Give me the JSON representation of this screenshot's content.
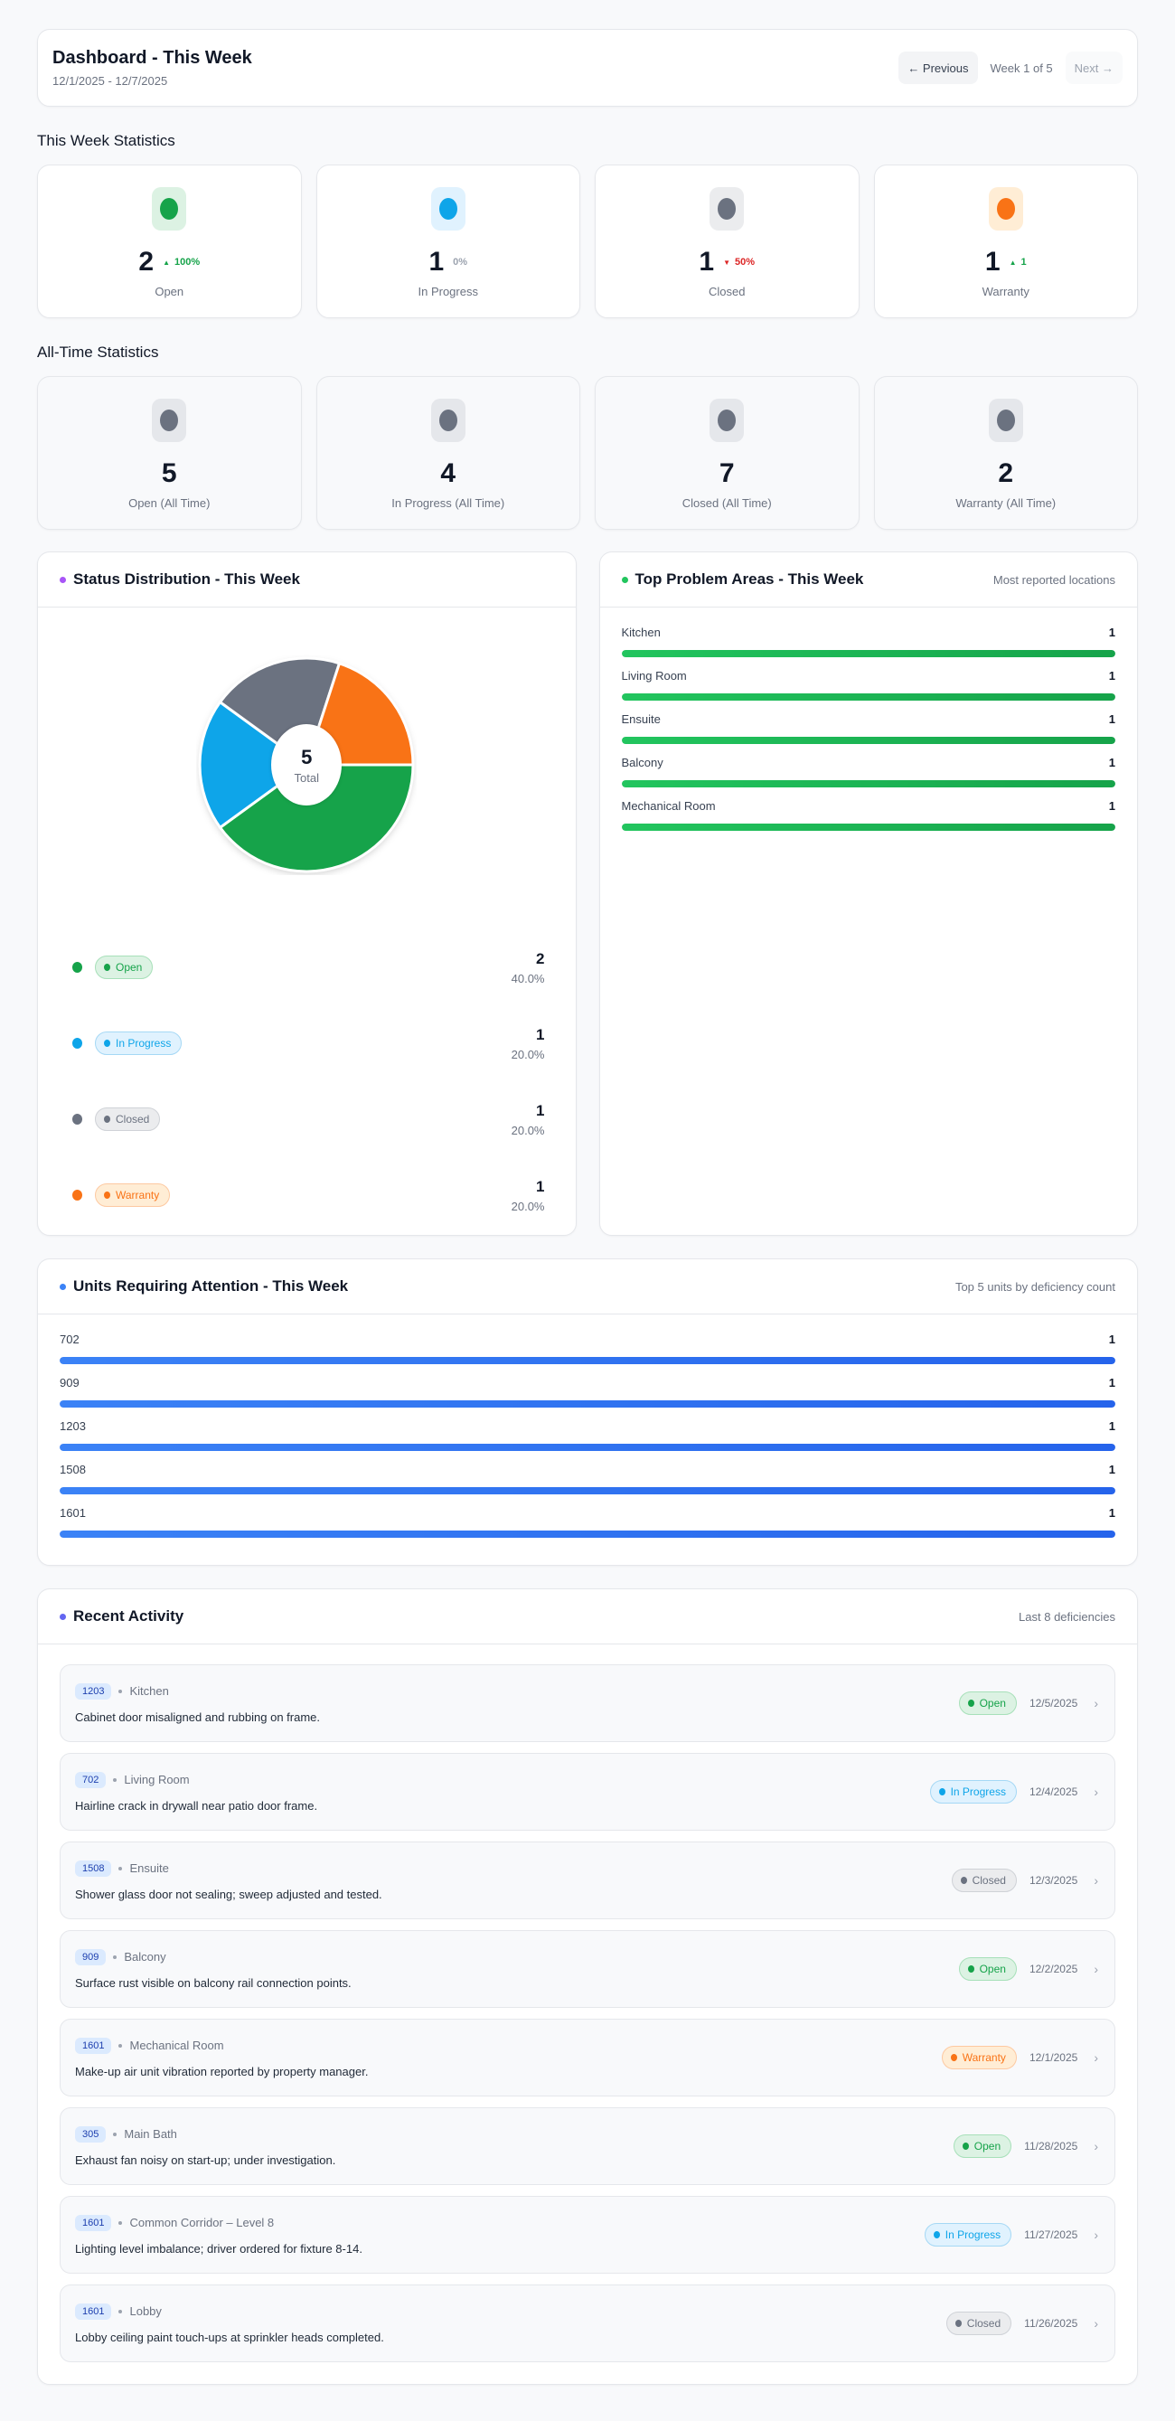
{
  "header": {
    "title": "Dashboard - This Week",
    "date_range": "12/1/2025 - 12/7/2025",
    "prev_label": "← Previous",
    "week_label": "Week 1 of 5",
    "next_label": "Next →"
  },
  "this_week": {
    "title": "This Week Statistics",
    "cards": [
      {
        "value": "2",
        "delta_arrow": "▲",
        "delta": "100%",
        "delta_color": "#16a34a",
        "label": "Open",
        "icon_color": "#16a34a",
        "icon_bg": "#dcf2e3"
      },
      {
        "value": "1",
        "delta_arrow": "",
        "delta": "0%",
        "delta_color": "#9ca3af",
        "label": "In Progress",
        "icon_color": "#0ea5e9",
        "icon_bg": "#e0f2fe"
      },
      {
        "value": "1",
        "delta_arrow": "▼",
        "delta": "50%",
        "delta_color": "#dc2626",
        "label": "Closed",
        "icon_color": "#6b7280",
        "icon_bg": "#ebecee"
      },
      {
        "value": "1",
        "delta_arrow": "▲",
        "delta": "1",
        "delta_color": "#16a34a",
        "label": "Warranty",
        "icon_color": "#f97316",
        "icon_bg": "#ffedd5"
      }
    ]
  },
  "all_time": {
    "title": "All-Time Statistics",
    "cards": [
      {
        "value": "5",
        "label": "Open (All Time)",
        "icon_color": "#6b7280",
        "icon_bg": "#e5e7eb"
      },
      {
        "value": "4",
        "label": "In Progress (All Time)",
        "icon_color": "#6b7280",
        "icon_bg": "#e5e7eb"
      },
      {
        "value": "7",
        "label": "Closed (All Time)",
        "icon_color": "#6b7280",
        "icon_bg": "#e5e7eb"
      },
      {
        "value": "2",
        "label": "Warranty (All Time)",
        "icon_color": "#6b7280",
        "icon_bg": "#e5e7eb"
      }
    ]
  },
  "status_distribution": {
    "title": "Status Distribution - This Week",
    "accent": "#a855f7",
    "total": "5",
    "total_label": "Total",
    "items": [
      {
        "label": "Open",
        "count": "2",
        "pct": "40.0%",
        "color": "#16a34a",
        "bg": "#dcf2e3",
        "border": "#a7e0b9"
      },
      {
        "label": "In Progress",
        "count": "1",
        "pct": "20.0%",
        "color": "#0ea5e9",
        "bg": "#e0f2fe",
        "border": "#a5d8f5"
      },
      {
        "label": "Closed",
        "count": "1",
        "pct": "20.0%",
        "color": "#6b7280",
        "bg": "#ebecee",
        "border": "#cfd2d7"
      },
      {
        "label": "Warranty",
        "count": "1",
        "pct": "20.0%",
        "color": "#f97316",
        "bg": "#ffedd5",
        "border": "#fdc9a1"
      }
    ]
  },
  "chart_data": {
    "type": "pie",
    "title": "Status Distribution - This Week",
    "categories": [
      "Open",
      "In Progress",
      "Closed",
      "Warranty"
    ],
    "values": [
      2,
      1,
      1,
      1
    ],
    "percentages": [
      40.0,
      20.0,
      20.0,
      20.0
    ],
    "colors": [
      "#16a34a",
      "#0ea5e9",
      "#6b7280",
      "#f97316"
    ],
    "center_label": "5 Total",
    "legend_position": "bottom"
  },
  "problem_areas": {
    "title": "Top Problem Areas - This Week",
    "subtitle": "Most reported locations",
    "accent": "#22c55e",
    "items": [
      {
        "label": "Kitchen",
        "count": "1",
        "pct": 100
      },
      {
        "label": "Living Room",
        "count": "1",
        "pct": 100
      },
      {
        "label": "Ensuite",
        "count": "1",
        "pct": 100
      },
      {
        "label": "Balcony",
        "count": "1",
        "pct": 100
      },
      {
        "label": "Mechanical Room",
        "count": "1",
        "pct": 100
      }
    ]
  },
  "units": {
    "title": "Units Requiring Attention - This Week",
    "subtitle": "Top 5 units by deficiency count",
    "accent": "#3b82f6",
    "items": [
      {
        "label": "702",
        "count": "1",
        "pct": 100
      },
      {
        "label": "909",
        "count": "1",
        "pct": 100
      },
      {
        "label": "1203",
        "count": "1",
        "pct": 100
      },
      {
        "label": "1508",
        "count": "1",
        "pct": 100
      },
      {
        "label": "1601",
        "count": "1",
        "pct": 100
      }
    ]
  },
  "activity": {
    "title": "Recent Activity",
    "subtitle": "Last 8 deficiencies",
    "accent": "#6366f1",
    "items": [
      {
        "unit": "1203",
        "location": "Kitchen",
        "desc": "Cabinet door misaligned and rubbing on frame.",
        "status": "Open",
        "date": "12/5/2025"
      },
      {
        "unit": "702",
        "location": "Living Room",
        "desc": "Hairline crack in drywall near patio door frame.",
        "status": "In Progress",
        "date": "12/4/2025"
      },
      {
        "unit": "1508",
        "location": "Ensuite",
        "desc": "Shower glass door not sealing; sweep adjusted and tested.",
        "status": "Closed",
        "date": "12/3/2025"
      },
      {
        "unit": "909",
        "location": "Balcony",
        "desc": "Surface rust visible on balcony rail connection points.",
        "status": "Open",
        "date": "12/2/2025"
      },
      {
        "unit": "1601",
        "location": "Mechanical Room",
        "desc": "Make-up air unit vibration reported by property manager.",
        "status": "Warranty",
        "date": "12/1/2025"
      },
      {
        "unit": "305",
        "location": "Main Bath",
        "desc": "Exhaust fan noisy on start-up; under investigation.",
        "status": "Open",
        "date": "11/28/2025"
      },
      {
        "unit": "1601",
        "location": "Common Corridor – Level 8",
        "desc": "Lighting level imbalance; driver ordered for fixture 8-14.",
        "status": "In Progress",
        "date": "11/27/2025"
      },
      {
        "unit": "1601",
        "location": "Lobby",
        "desc": "Lobby ceiling paint touch-ups at sprinkler heads completed.",
        "status": "Closed",
        "date": "11/26/2025"
      }
    ]
  }
}
